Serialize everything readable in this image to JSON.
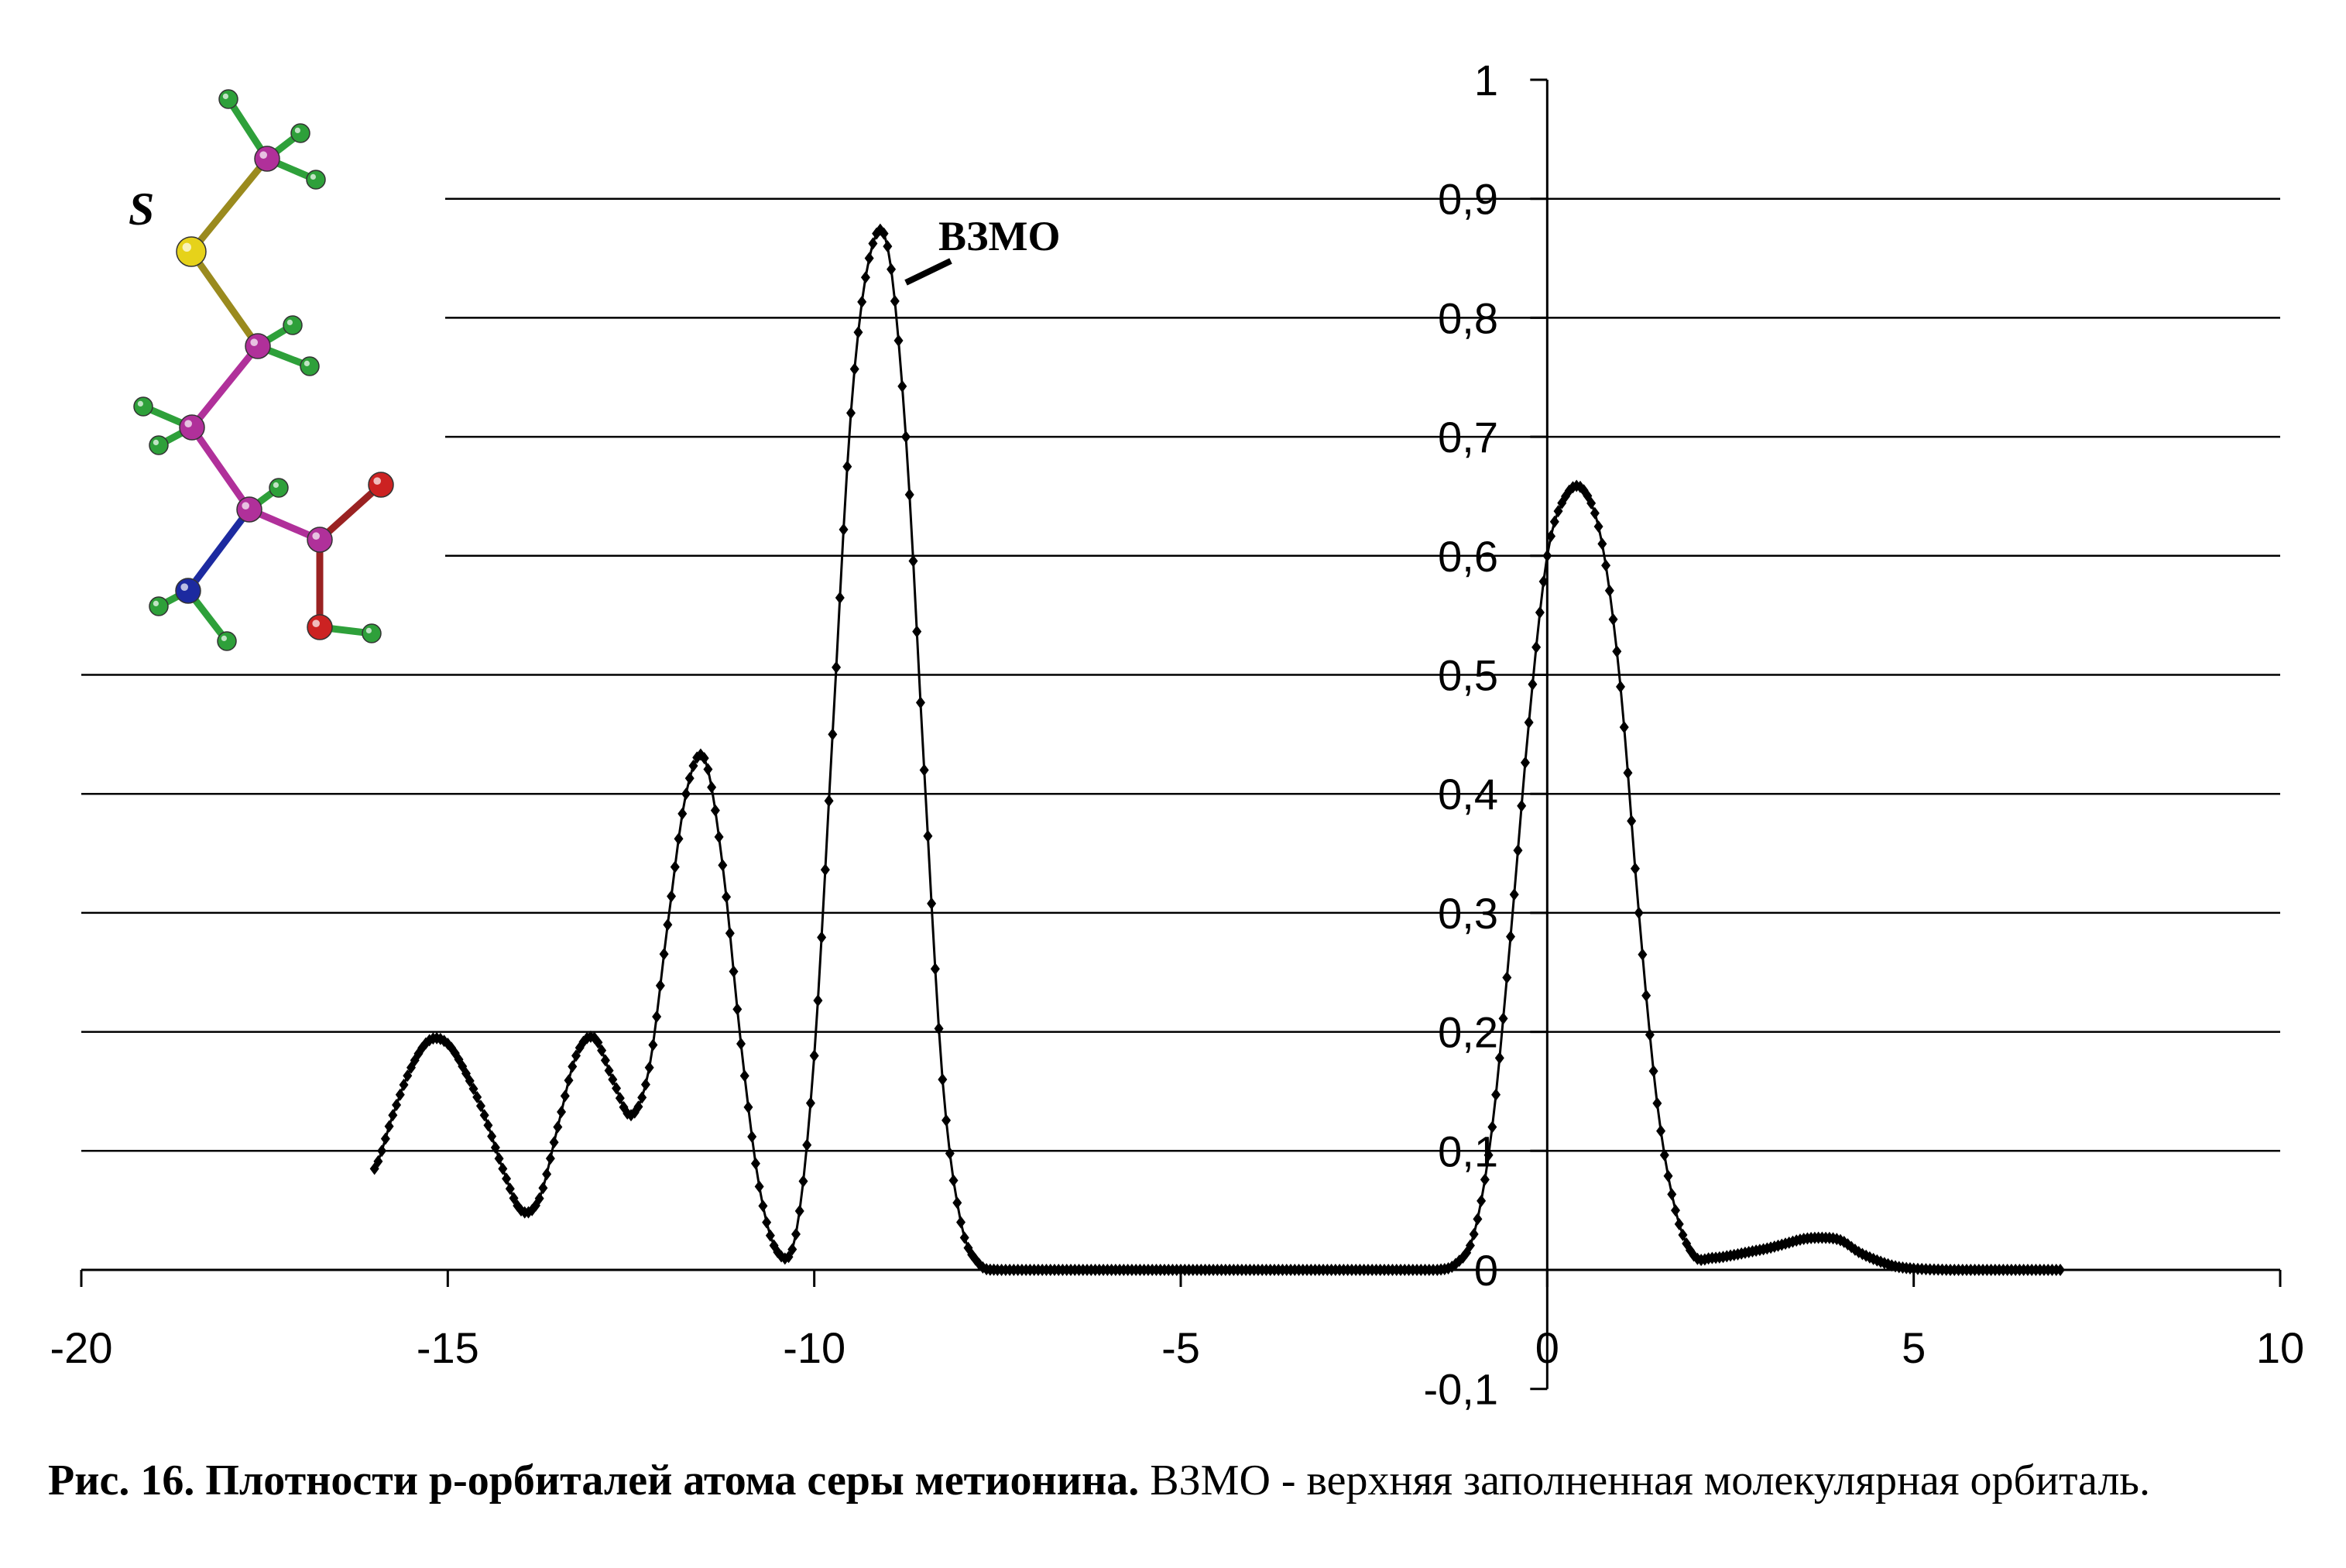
{
  "chart_data": {
    "type": "scatter",
    "xlim": [
      -20,
      10
    ],
    "ylim": [
      -0.1,
      1
    ],
    "x_ticks": [
      "-20",
      "-15",
      "-10",
      "-5",
      "0",
      "5",
      "10"
    ],
    "y_ticks": [
      "-0,1",
      "0",
      "0,1",
      "0,2",
      "0,3",
      "0,4",
      "0,5",
      "0,6",
      "0,7",
      "0,8",
      "0,9",
      "1"
    ],
    "grid": true,
    "annotation": {
      "text": "ВЗМО",
      "x": -9.1,
      "y": 0.87
    },
    "peaks": [
      {
        "x": -15.2,
        "y": 0.195
      },
      {
        "x": -13.0,
        "y": 0.2
      },
      {
        "x": -11.6,
        "y": 0.435
      },
      {
        "x": -9.1,
        "y": 0.87
      },
      {
        "x": 0.6,
        "y": 0.655
      },
      {
        "x": 3.7,
        "y": 0.027
      }
    ],
    "series": [
      {
        "x": [
          -16,
          -15.75,
          -15.5,
          -15.25,
          -15,
          -14.75,
          -14.5,
          -14.25,
          -14,
          -13.75,
          -13.5,
          -13.25,
          -13,
          -12.75,
          -12.5,
          -12.25,
          -12,
          -11.75,
          -11.5,
          -11.25,
          -11,
          -10.75,
          -10.5,
          -10.25,
          -10,
          -9.75,
          -9.5,
          -9.25,
          -9,
          -8.75,
          -8.5,
          -8.25,
          -8,
          -7.75,
          -7.5,
          -7,
          -6,
          -5,
          -4,
          -3,
          -2,
          -1.5,
          -1.25,
          -1,
          -0.75,
          -0.5,
          -0.25,
          0,
          0.25,
          0.5,
          0.75,
          1,
          1.25,
          1.5,
          1.75,
          2,
          2.25,
          2.5,
          2.75,
          3,
          3.25,
          3.5,
          3.75,
          4,
          4.25,
          4.5,
          4.75,
          5,
          5.5,
          6,
          6.5,
          7
        ],
        "values": [
          0.085,
          0.13,
          0.17,
          0.193,
          0.19,
          0.165,
          0.13,
          0.085,
          0.05,
          0.06,
          0.12,
          0.18,
          0.195,
          0.16,
          0.13,
          0.17,
          0.29,
          0.4,
          0.43,
          0.34,
          0.19,
          0.07,
          0.015,
          0.03,
          0.18,
          0.45,
          0.72,
          0.85,
          0.86,
          0.7,
          0.42,
          0.16,
          0.04,
          0.005,
          0,
          0,
          0,
          0,
          0,
          0,
          0,
          0,
          0.005,
          0.03,
          0.12,
          0.28,
          0.46,
          0.6,
          0.65,
          0.655,
          0.61,
          0.49,
          0.3,
          0.14,
          0.05,
          0.012,
          0.01,
          0.012,
          0.015,
          0.018,
          0.022,
          0.026,
          0.027,
          0.025,
          0.015,
          0.008,
          0.003,
          0.001,
          0,
          0,
          0,
          0
        ]
      }
    ]
  },
  "molecule": {
    "atom_label": "S",
    "colors": {
      "carbon": "#b0309a",
      "hydrogen": "#2ea03a",
      "sulfur": "#e6d21a",
      "oxygen": "#cc2222",
      "nitrogen": "#1c2aa0",
      "s_bond": "#9a8a1e",
      "o_bond": "#9a2222"
    }
  },
  "caption": {
    "bold": "Рис. 16. Плотности p-орбиталей атома серы метионина.",
    "normal": " ВЗМО - верхняя заполненная молекулярная орбиталь."
  }
}
